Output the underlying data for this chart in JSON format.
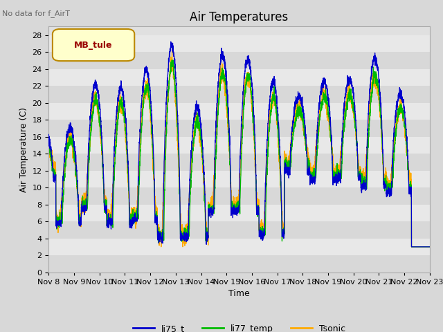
{
  "title": "Air Temperatures",
  "ylabel": "Air Temperature (C)",
  "xlabel": "Time",
  "annotation": "No data for f_AirT",
  "legend_label": "MB_tule",
  "series_labels": [
    "li75_t",
    "li77_temp",
    "Tsonic"
  ],
  "series_colors": [
    "#0000cc",
    "#00bb00",
    "#ffaa00"
  ],
  "ylim": [
    0,
    29
  ],
  "yticks": [
    0,
    2,
    4,
    6,
    8,
    10,
    12,
    14,
    16,
    18,
    20,
    22,
    24,
    26,
    28
  ],
  "xtick_labels": [
    "Nov 8",
    "Nov 9",
    "Nov 10",
    "Nov 11",
    "Nov 12",
    "Nov 13",
    "Nov 14",
    "Nov 15",
    "Nov 16",
    "Nov 17",
    "Nov 18",
    "Nov 19",
    "Nov 20",
    "Nov 21",
    "Nov 22",
    "Nov 23"
  ],
  "bg_color": "#e8e8e8",
  "band_colors": [
    "#d8d8d8",
    "#e8e8e8"
  ],
  "title_fontsize": 12,
  "label_fontsize": 9,
  "tick_fontsize": 8,
  "day_peaks": [
    17.5,
    16.8,
    17.0,
    22.1,
    21.8,
    23.9,
    26.8,
    19.5,
    25.6,
    25.2,
    22.5,
    20.8,
    22.5,
    22.8,
    25.2,
    21.0
  ],
  "day_mins": [
    11.0,
    5.8,
    7.5,
    5.8,
    6.2,
    4.1,
    4.2,
    7.2,
    7.2,
    4.5,
    12.0,
    10.9,
    11.0,
    10.2,
    9.5,
    10.0
  ]
}
